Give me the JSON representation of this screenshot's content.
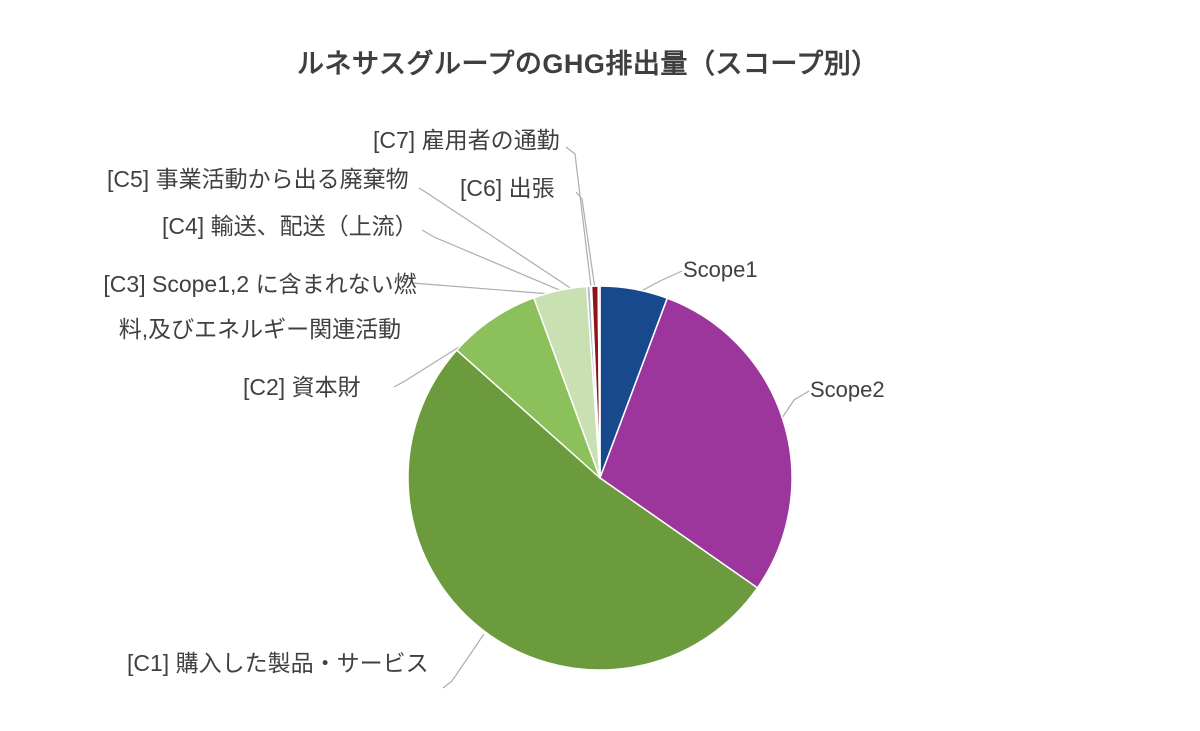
{
  "chart_data": {
    "type": "pie",
    "title": "ルネサスグループのGHG排出量（スコープ別）",
    "legend": "none (callout labels with leader lines)",
    "start_angle": "12 o'clock, clockwise",
    "values_unit": "% share of total GHG emissions",
    "values_are_estimated": true,
    "slices": [
      {
        "id": "scope1",
        "label": "Scope1",
        "value": 5.7,
        "color": "#17498c"
      },
      {
        "id": "scope2",
        "label": "Scope2",
        "value": 29.0,
        "color": "#9c359c"
      },
      {
        "id": "c1",
        "label": "[C1] 購入した製品・サービス",
        "value": 51.9,
        "color": "#6b9b3c"
      },
      {
        "id": "c2",
        "label": "[C2] 資本財",
        "value": 7.8,
        "color": "#8bc05a"
      },
      {
        "id": "c3",
        "label": "[C3] Scope1,2 に含まれない燃料,及びエネルギー関連活動",
        "value": 4.5,
        "color": "#c9e0b2"
      },
      {
        "id": "c4",
        "label": "[C4] 輸送、配送（上流）",
        "value": 0.3,
        "color": "#aebbd1"
      },
      {
        "id": "c5",
        "label": "[C5] 事業活動から出る廃棄物",
        "value": 0.1,
        "color": "#e4e7ec"
      },
      {
        "id": "c6",
        "label": "[C6] 出張",
        "value": 0.55,
        "color": "#8e1418"
      },
      {
        "id": "c7",
        "label": "[C7] 雇用者の通勤",
        "value": 0.15,
        "color": "#b9c6da"
      }
    ],
    "colors_note": {
      "label_text": "#404040",
      "leader_line": "#adadad",
      "background": "#ffffff"
    }
  }
}
